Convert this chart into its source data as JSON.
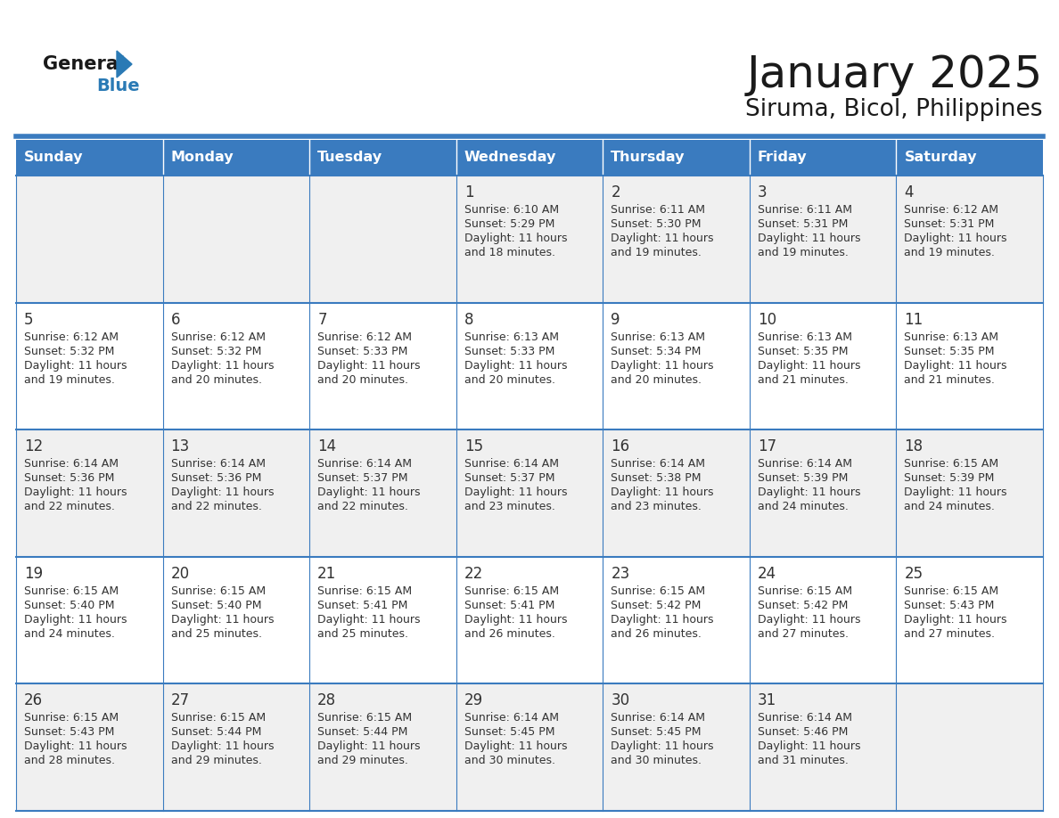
{
  "title": "January 2025",
  "subtitle": "Siruma, Bicol, Philippines",
  "days_of_week": [
    "Sunday",
    "Monday",
    "Tuesday",
    "Wednesday",
    "Thursday",
    "Friday",
    "Saturday"
  ],
  "header_bg": "#3a7bbf",
  "header_text": "#ffffff",
  "row_bg_odd": "#f0f0f0",
  "row_bg_even": "#ffffff",
  "cell_border": "#3a7bbf",
  "day_number_color": "#333333",
  "info_text_color": "#333333",
  "logo_general_color": "#1a1a1a",
  "logo_blue_color": "#2a7ab5",
  "calendar": [
    [
      null,
      null,
      null,
      {
        "day": 1,
        "sunrise": "6:10 AM",
        "sunset": "5:29 PM",
        "daylight": "11 hours and 18 minutes."
      },
      {
        "day": 2,
        "sunrise": "6:11 AM",
        "sunset": "5:30 PM",
        "daylight": "11 hours and 19 minutes."
      },
      {
        "day": 3,
        "sunrise": "6:11 AM",
        "sunset": "5:31 PM",
        "daylight": "11 hours and 19 minutes."
      },
      {
        "day": 4,
        "sunrise": "6:12 AM",
        "sunset": "5:31 PM",
        "daylight": "11 hours and 19 minutes."
      }
    ],
    [
      {
        "day": 5,
        "sunrise": "6:12 AM",
        "sunset": "5:32 PM",
        "daylight": "11 hours and 19 minutes."
      },
      {
        "day": 6,
        "sunrise": "6:12 AM",
        "sunset": "5:32 PM",
        "daylight": "11 hours and 20 minutes."
      },
      {
        "day": 7,
        "sunrise": "6:12 AM",
        "sunset": "5:33 PM",
        "daylight": "11 hours and 20 minutes."
      },
      {
        "day": 8,
        "sunrise": "6:13 AM",
        "sunset": "5:33 PM",
        "daylight": "11 hours and 20 minutes."
      },
      {
        "day": 9,
        "sunrise": "6:13 AM",
        "sunset": "5:34 PM",
        "daylight": "11 hours and 20 minutes."
      },
      {
        "day": 10,
        "sunrise": "6:13 AM",
        "sunset": "5:35 PM",
        "daylight": "11 hours and 21 minutes."
      },
      {
        "day": 11,
        "sunrise": "6:13 AM",
        "sunset": "5:35 PM",
        "daylight": "11 hours and 21 minutes."
      }
    ],
    [
      {
        "day": 12,
        "sunrise": "6:14 AM",
        "sunset": "5:36 PM",
        "daylight": "11 hours and 22 minutes."
      },
      {
        "day": 13,
        "sunrise": "6:14 AM",
        "sunset": "5:36 PM",
        "daylight": "11 hours and 22 minutes."
      },
      {
        "day": 14,
        "sunrise": "6:14 AM",
        "sunset": "5:37 PM",
        "daylight": "11 hours and 22 minutes."
      },
      {
        "day": 15,
        "sunrise": "6:14 AM",
        "sunset": "5:37 PM",
        "daylight": "11 hours and 23 minutes."
      },
      {
        "day": 16,
        "sunrise": "6:14 AM",
        "sunset": "5:38 PM",
        "daylight": "11 hours and 23 minutes."
      },
      {
        "day": 17,
        "sunrise": "6:14 AM",
        "sunset": "5:39 PM",
        "daylight": "11 hours and 24 minutes."
      },
      {
        "day": 18,
        "sunrise": "6:15 AM",
        "sunset": "5:39 PM",
        "daylight": "11 hours and 24 minutes."
      }
    ],
    [
      {
        "day": 19,
        "sunrise": "6:15 AM",
        "sunset": "5:40 PM",
        "daylight": "11 hours and 24 minutes."
      },
      {
        "day": 20,
        "sunrise": "6:15 AM",
        "sunset": "5:40 PM",
        "daylight": "11 hours and 25 minutes."
      },
      {
        "day": 21,
        "sunrise": "6:15 AM",
        "sunset": "5:41 PM",
        "daylight": "11 hours and 25 minutes."
      },
      {
        "day": 22,
        "sunrise": "6:15 AM",
        "sunset": "5:41 PM",
        "daylight": "11 hours and 26 minutes."
      },
      {
        "day": 23,
        "sunrise": "6:15 AM",
        "sunset": "5:42 PM",
        "daylight": "11 hours and 26 minutes."
      },
      {
        "day": 24,
        "sunrise": "6:15 AM",
        "sunset": "5:42 PM",
        "daylight": "11 hours and 27 minutes."
      },
      {
        "day": 25,
        "sunrise": "6:15 AM",
        "sunset": "5:43 PM",
        "daylight": "11 hours and 27 minutes."
      }
    ],
    [
      {
        "day": 26,
        "sunrise": "6:15 AM",
        "sunset": "5:43 PM",
        "daylight": "11 hours and 28 minutes."
      },
      {
        "day": 27,
        "sunrise": "6:15 AM",
        "sunset": "5:44 PM",
        "daylight": "11 hours and 29 minutes."
      },
      {
        "day": 28,
        "sunrise": "6:15 AM",
        "sunset": "5:44 PM",
        "daylight": "11 hours and 29 minutes."
      },
      {
        "day": 29,
        "sunrise": "6:14 AM",
        "sunset": "5:45 PM",
        "daylight": "11 hours and 30 minutes."
      },
      {
        "day": 30,
        "sunrise": "6:14 AM",
        "sunset": "5:45 PM",
        "daylight": "11 hours and 30 minutes."
      },
      {
        "day": 31,
        "sunrise": "6:14 AM",
        "sunset": "5:46 PM",
        "daylight": "11 hours and 31 minutes."
      },
      null
    ]
  ]
}
